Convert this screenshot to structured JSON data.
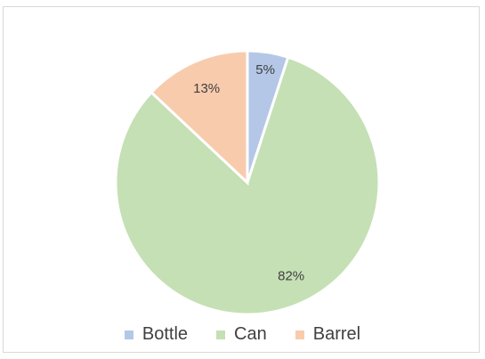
{
  "chart_data": {
    "type": "pie",
    "title": "",
    "categories": [
      "Bottle",
      "Can",
      "Barrel"
    ],
    "values": [
      5,
      82,
      13
    ],
    "labels": [
      "5%",
      "82%",
      "13%"
    ],
    "colors": [
      "#b4c7e7",
      "#c5e0b4",
      "#f8cbad"
    ],
    "legend_position": "bottom"
  }
}
